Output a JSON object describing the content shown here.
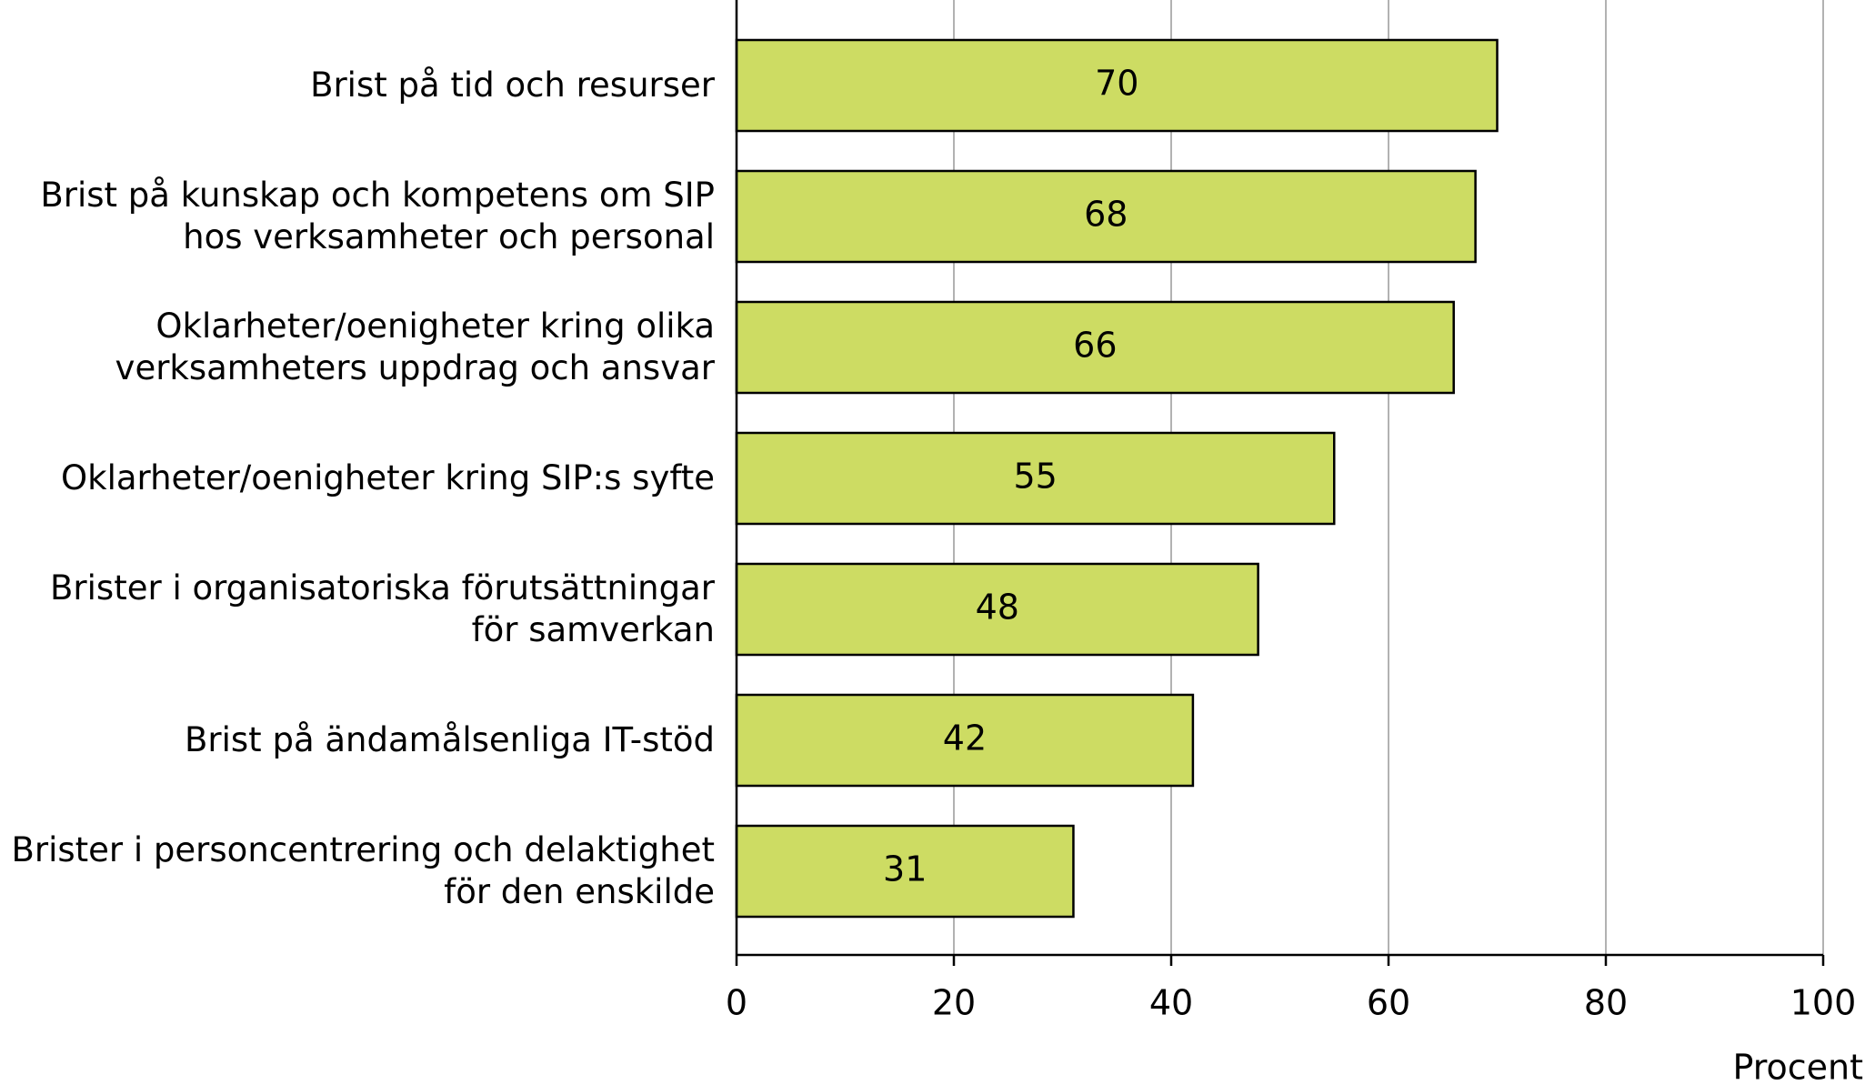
{
  "chart_data": {
    "type": "bar",
    "orientation": "horizontal",
    "categories": [
      "Brist på tid och resurser",
      "Brist på kunskap och kompetens om SIP hos verksamheter och personal",
      "Oklarheter/oenigheter kring olika verksamheters uppdrag och ansvar",
      "Oklarheter/oenigheter kring SIP:s syfte",
      "Brister i organisatoriska förutsättningar för samverkan",
      "Brist på ändamålsenliga IT-stöd",
      "Brister i personcentrering och delaktighet för den enskilde"
    ],
    "values": [
      70,
      68,
      66,
      55,
      48,
      42,
      31
    ],
    "color": "#cddc63",
    "xlim": [
      0,
      100
    ],
    "xticks": [
      0,
      20,
      40,
      60,
      80,
      100
    ],
    "x_label": "Procent",
    "grid": true
  }
}
